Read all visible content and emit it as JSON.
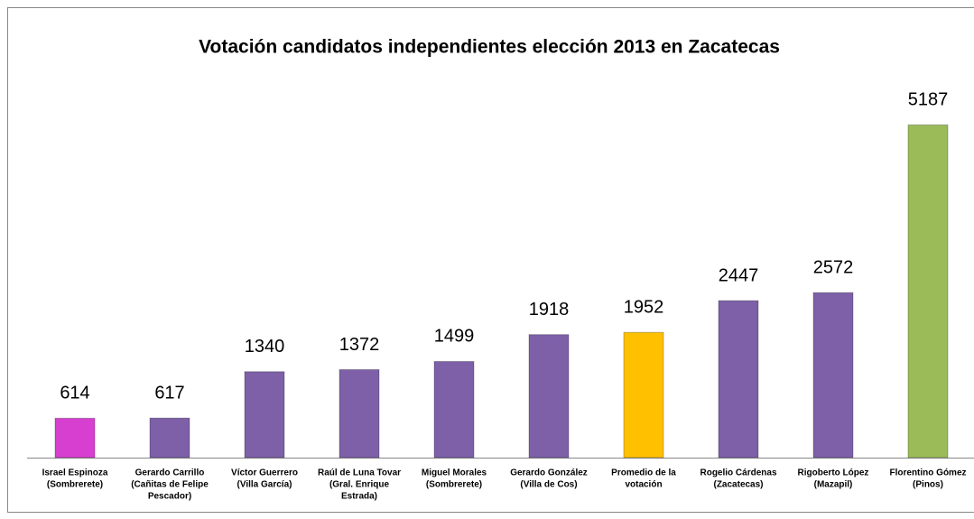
{
  "chart_data": {
    "type": "bar",
    "title": "Votación candidatos independientes elección 2013 en Zacatecas",
    "categories": [
      [
        "Israel Espinoza",
        "(Sombrerete)"
      ],
      [
        "Gerardo Carrillo",
        "(Cañitas de Felipe",
        "Pescador)"
      ],
      [
        "Víctor Guerrero",
        "(Villa García)"
      ],
      [
        "Raúl de Luna Tovar",
        "(Gral. Enrique",
        "Estrada)"
      ],
      [
        "Miguel Morales",
        "(Sombrerete)"
      ],
      [
        "Gerardo González",
        "(Villa de Cos)"
      ],
      [
        "Promedio de la",
        "votación"
      ],
      [
        "Rogelio Cárdenas",
        "(Zacatecas)"
      ],
      [
        "Rigoberto López",
        "(Mazapil)"
      ],
      [
        "Florentino Gómez",
        "(Pinos)"
      ]
    ],
    "values": [
      614,
      617,
      1340,
      1372,
      1499,
      1918,
      1952,
      2447,
      2572,
      5187
    ],
    "colors": [
      "#d63fcf",
      "#7d60a8",
      "#7d60a8",
      "#7d60a8",
      "#7d60a8",
      "#7d60a8",
      "#ffc000",
      "#7d60a8",
      "#7d60a8",
      "#9bbb59"
    ],
    "ylim": [
      0,
      5600
    ]
  }
}
